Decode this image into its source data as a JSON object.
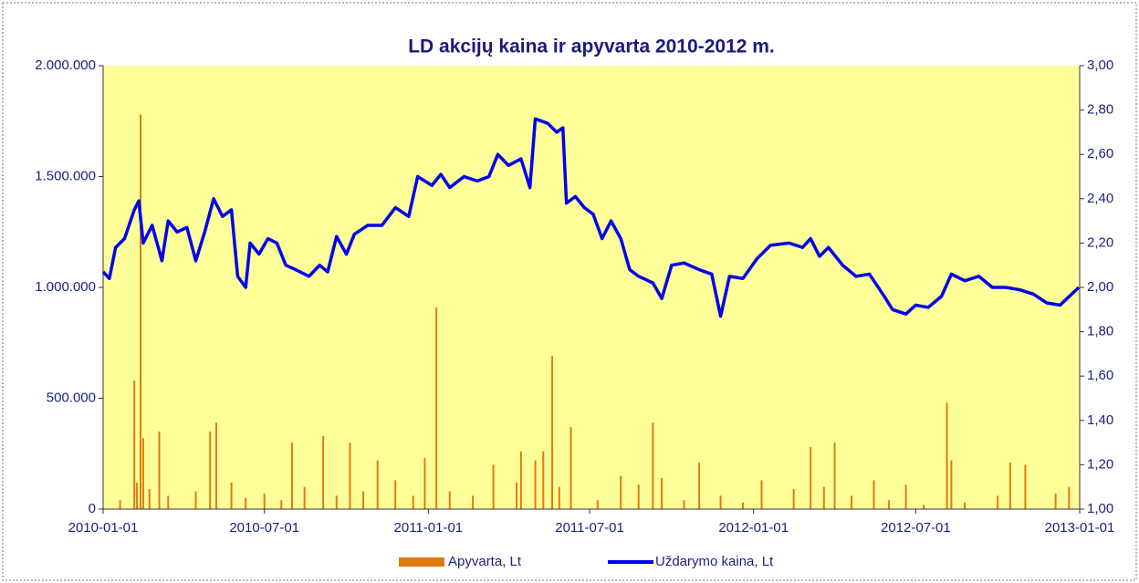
{
  "chart_data": {
    "type": "bar-line",
    "title": "LD akcijų kaina ir apyvarta 2010-2012 m.",
    "xlim": [
      "2010-01-01",
      "2013-01-01"
    ],
    "xticks": [
      "2010-01-01",
      "2010-07-01",
      "2011-01-01",
      "2011-07-01",
      "2012-01-01",
      "2012-07-01",
      "2013-01-01"
    ],
    "ylim": [
      0,
      2000000
    ],
    "yticks": [
      {
        "value": 0,
        "label": "0"
      },
      {
        "value": 500000,
        "label": "500.000"
      },
      {
        "value": 1000000,
        "label": "1.000.000"
      },
      {
        "value": 1500000,
        "label": "1.500.000"
      },
      {
        "value": 2000000,
        "label": "2.000.000"
      }
    ],
    "y2lim": [
      1,
      3
    ],
    "y2ticks": [
      {
        "value": 1,
        "label": "1,00"
      },
      {
        "value": 1.2,
        "label": "1,20"
      },
      {
        "value": 1.4,
        "label": "1,40"
      },
      {
        "value": 1.6,
        "label": "1,60"
      },
      {
        "value": 1.8,
        "label": "1,80"
      },
      {
        "value": 2,
        "label": "2,00"
      },
      {
        "value": 2.2,
        "label": "2,20"
      },
      {
        "value": 2.4,
        "label": "2,40"
      },
      {
        "value": 2.6,
        "label": "2,60"
      },
      {
        "value": 2.8,
        "label": "2,80"
      },
      {
        "value": 3,
        "label": "3,00"
      }
    ],
    "background": "#ffff99",
    "series": [
      {
        "name": "Apyvarta, Lt",
        "type": "bar",
        "color": "#e07b10",
        "x": [
          "2010-01-20",
          "2010-02-05",
          "2010-02-08",
          "2010-02-12",
          "2010-02-15",
          "2010-02-22",
          "2010-03-05",
          "2010-03-15",
          "2010-04-15",
          "2010-05-01",
          "2010-05-08",
          "2010-05-25",
          "2010-06-10",
          "2010-07-01",
          "2010-07-20",
          "2010-08-01",
          "2010-08-15",
          "2010-09-05",
          "2010-09-20",
          "2010-10-05",
          "2010-10-20",
          "2010-11-05",
          "2010-11-25",
          "2010-12-15",
          "2010-12-28",
          "2011-01-10",
          "2011-01-25",
          "2011-02-20",
          "2011-03-15",
          "2011-04-10",
          "2011-04-15",
          "2011-05-01",
          "2011-05-10",
          "2011-05-20",
          "2011-05-28",
          "2011-06-10",
          "2011-07-10",
          "2011-08-05",
          "2011-08-25",
          "2011-09-10",
          "2011-09-20",
          "2011-10-15",
          "2011-11-01",
          "2011-11-25",
          "2011-12-20",
          "2012-01-10",
          "2012-02-15",
          "2012-03-05",
          "2012-03-20",
          "2012-04-01",
          "2012-04-20",
          "2012-05-15",
          "2012-06-01",
          "2012-06-20",
          "2012-07-10",
          "2012-08-05",
          "2012-08-10",
          "2012-08-25",
          "2012-10-01",
          "2012-10-15",
          "2012-11-01",
          "2012-12-05",
          "2012-12-20"
        ],
        "values": [
          40000,
          580000,
          120000,
          1780000,
          320000,
          90000,
          350000,
          60000,
          80000,
          350000,
          390000,
          120000,
          50000,
          70000,
          40000,
          300000,
          100000,
          330000,
          60000,
          300000,
          80000,
          220000,
          130000,
          60000,
          230000,
          910000,
          80000,
          60000,
          200000,
          120000,
          260000,
          220000,
          260000,
          690000,
          100000,
          370000,
          40000,
          150000,
          110000,
          390000,
          140000,
          40000,
          210000,
          60000,
          30000,
          130000,
          90000,
          280000,
          100000,
          300000,
          60000,
          130000,
          40000,
          110000,
          20000,
          480000,
          220000,
          30000,
          60000,
          210000,
          200000,
          70000,
          100000
        ]
      },
      {
        "name": "Uždarymo kaina, Lt",
        "type": "line",
        "axis": "y2",
        "color": "#0000ee",
        "x": [
          "2010-01-01",
          "2010-01-08",
          "2010-01-15",
          "2010-01-25",
          "2010-02-05",
          "2010-02-10",
          "2010-02-15",
          "2010-02-25",
          "2010-03-08",
          "2010-03-15",
          "2010-03-25",
          "2010-04-05",
          "2010-04-15",
          "2010-04-25",
          "2010-05-05",
          "2010-05-15",
          "2010-05-25",
          "2010-06-01",
          "2010-06-10",
          "2010-06-15",
          "2010-06-25",
          "2010-07-05",
          "2010-07-15",
          "2010-07-25",
          "2010-08-05",
          "2010-08-20",
          "2010-09-01",
          "2010-09-10",
          "2010-09-20",
          "2010-10-01",
          "2010-10-10",
          "2010-10-25",
          "2010-11-10",
          "2010-11-25",
          "2010-12-10",
          "2010-12-20",
          "2011-01-05",
          "2011-01-15",
          "2011-01-25",
          "2011-02-10",
          "2011-02-25",
          "2011-03-10",
          "2011-03-20",
          "2011-04-01",
          "2011-04-15",
          "2011-04-25",
          "2011-05-01",
          "2011-05-15",
          "2011-05-25",
          "2011-06-01",
          "2011-06-05",
          "2011-06-15",
          "2011-06-25",
          "2011-07-05",
          "2011-07-15",
          "2011-07-25",
          "2011-08-05",
          "2011-08-15",
          "2011-08-25",
          "2011-09-10",
          "2011-09-20",
          "2011-10-01",
          "2011-10-15",
          "2011-11-01",
          "2011-11-15",
          "2011-11-25",
          "2011-12-05",
          "2011-12-20",
          "2012-01-05",
          "2012-01-20",
          "2012-02-10",
          "2012-02-25",
          "2012-03-05",
          "2012-03-15",
          "2012-03-25",
          "2012-04-10",
          "2012-04-25",
          "2012-05-10",
          "2012-05-25",
          "2012-06-05",
          "2012-06-20",
          "2012-07-01",
          "2012-07-15",
          "2012-07-30",
          "2012-08-10",
          "2012-08-25",
          "2012-09-10",
          "2012-09-25",
          "2012-10-10",
          "2012-10-25",
          "2012-11-10",
          "2012-11-25",
          "2012-12-10",
          "2012-12-31"
        ],
        "values": [
          2.07,
          2.04,
          2.18,
          2.22,
          2.35,
          2.39,
          2.2,
          2.28,
          2.12,
          2.3,
          2.25,
          2.27,
          2.12,
          2.25,
          2.4,
          2.32,
          2.35,
          2.05,
          2.0,
          2.2,
          2.15,
          2.22,
          2.2,
          2.1,
          2.08,
          2.05,
          2.1,
          2.07,
          2.23,
          2.15,
          2.24,
          2.28,
          2.28,
          2.36,
          2.32,
          2.5,
          2.46,
          2.51,
          2.45,
          2.5,
          2.48,
          2.5,
          2.6,
          2.55,
          2.58,
          2.45,
          2.76,
          2.74,
          2.7,
          2.72,
          2.38,
          2.41,
          2.36,
          2.33,
          2.22,
          2.3,
          2.22,
          2.08,
          2.05,
          2.02,
          1.95,
          2.1,
          2.11,
          2.08,
          2.06,
          1.87,
          2.05,
          2.04,
          2.13,
          2.19,
          2.2,
          2.18,
          2.22,
          2.14,
          2.18,
          2.1,
          2.05,
          2.06,
          1.97,
          1.9,
          1.88,
          1.92,
          1.91,
          1.96,
          2.06,
          2.03,
          2.05,
          2.0,
          2.0,
          1.99,
          1.97,
          1.93,
          1.92,
          2.0
        ]
      }
    ]
  }
}
